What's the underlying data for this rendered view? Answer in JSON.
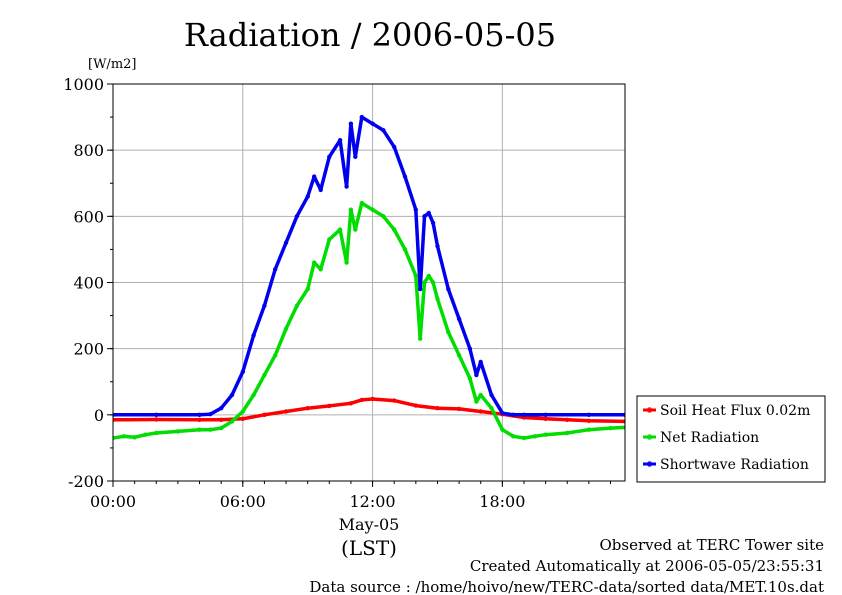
{
  "chart_data": {
    "type": "line",
    "title": "Radiation / 2006-05-05",
    "ylabel_unit": "[W/m2]",
    "ylim": [
      -200,
      1000
    ],
    "y_ticks": [
      "1000",
      "800",
      "600",
      "400",
      "200",
      "0",
      "-200"
    ],
    "xlim": [
      0,
      23.67
    ],
    "x_ticks": [
      {
        "hour": 0,
        "label": "00:00"
      },
      {
        "hour": 6,
        "label": "06:00"
      },
      {
        "hour": 12,
        "label": "12:00"
      },
      {
        "hour": 18,
        "label": "18:00"
      }
    ],
    "date_label": "May-05",
    "xlabel": "(LST)",
    "grid": true,
    "legend_placement": "right",
    "series": [
      {
        "name": "Soil Heat Flux 0.02m",
        "color": "#ff0000",
        "x": [
          0,
          2,
          4,
          5,
          6,
          7,
          8,
          9,
          10,
          11,
          11.5,
          12,
          13,
          14,
          15,
          16,
          17,
          18,
          19,
          20,
          21,
          22,
          23.67
        ],
        "y": [
          -15,
          -14,
          -15,
          -15,
          -12,
          0,
          10,
          20,
          27,
          35,
          45,
          48,
          43,
          28,
          20,
          18,
          10,
          2,
          -8,
          -12,
          -15,
          -18,
          -20
        ]
      },
      {
        "name": "Net Radiation",
        "color": "#00dd00",
        "x": [
          0,
          0.5,
          1,
          1.5,
          2,
          3,
          4,
          4.5,
          5,
          5.5,
          6,
          6.5,
          7,
          7.5,
          8,
          8.5,
          9,
          9.3,
          9.6,
          10,
          10.5,
          10.8,
          11,
          11.2,
          11.5,
          12,
          12.5,
          13,
          13.5,
          14,
          14.2,
          14.4,
          14.6,
          14.8,
          15,
          15.5,
          16,
          16.5,
          16.8,
          17,
          17.5,
          18,
          18.5,
          19,
          19.5,
          20,
          21,
          22,
          23,
          23.67
        ],
        "y": [
          -70,
          -65,
          -68,
          -60,
          -55,
          -50,
          -45,
          -45,
          -40,
          -20,
          10,
          60,
          120,
          180,
          260,
          330,
          380,
          460,
          440,
          530,
          560,
          460,
          620,
          560,
          640,
          620,
          600,
          560,
          500,
          420,
          230,
          400,
          420,
          400,
          350,
          250,
          180,
          110,
          40,
          60,
          20,
          -45,
          -65,
          -70,
          -65,
          -60,
          -55,
          -45,
          -40,
          -38
        ]
      },
      {
        "name": "Shortwave Radiation",
        "color": "#0000ee",
        "x": [
          0,
          2,
          4,
          4.5,
          5,
          5.5,
          6,
          6.5,
          7,
          7.5,
          8,
          8.5,
          9,
          9.3,
          9.6,
          10,
          10.5,
          10.8,
          11,
          11.2,
          11.5,
          12,
          12.5,
          13,
          13.5,
          14,
          14.2,
          14.4,
          14.6,
          14.8,
          15,
          15.5,
          16,
          16.5,
          16.8,
          17,
          17.5,
          18,
          18.5,
          19,
          20,
          22,
          23.67
        ],
        "y": [
          0,
          0,
          0,
          2,
          20,
          60,
          130,
          240,
          330,
          440,
          520,
          600,
          660,
          720,
          680,
          780,
          830,
          690,
          880,
          780,
          900,
          880,
          860,
          810,
          720,
          620,
          380,
          600,
          610,
          580,
          510,
          380,
          290,
          200,
          120,
          160,
          60,
          5,
          0,
          0,
          0,
          0,
          0
        ]
      }
    ]
  },
  "footer": {
    "site": "Observed at TERC Tower site",
    "created": "Created Automatically at 2006-05-05/23:55:31",
    "source": "Data source : /home/hoivo/new/TERC-data/sorted data/MET.10s.dat"
  }
}
